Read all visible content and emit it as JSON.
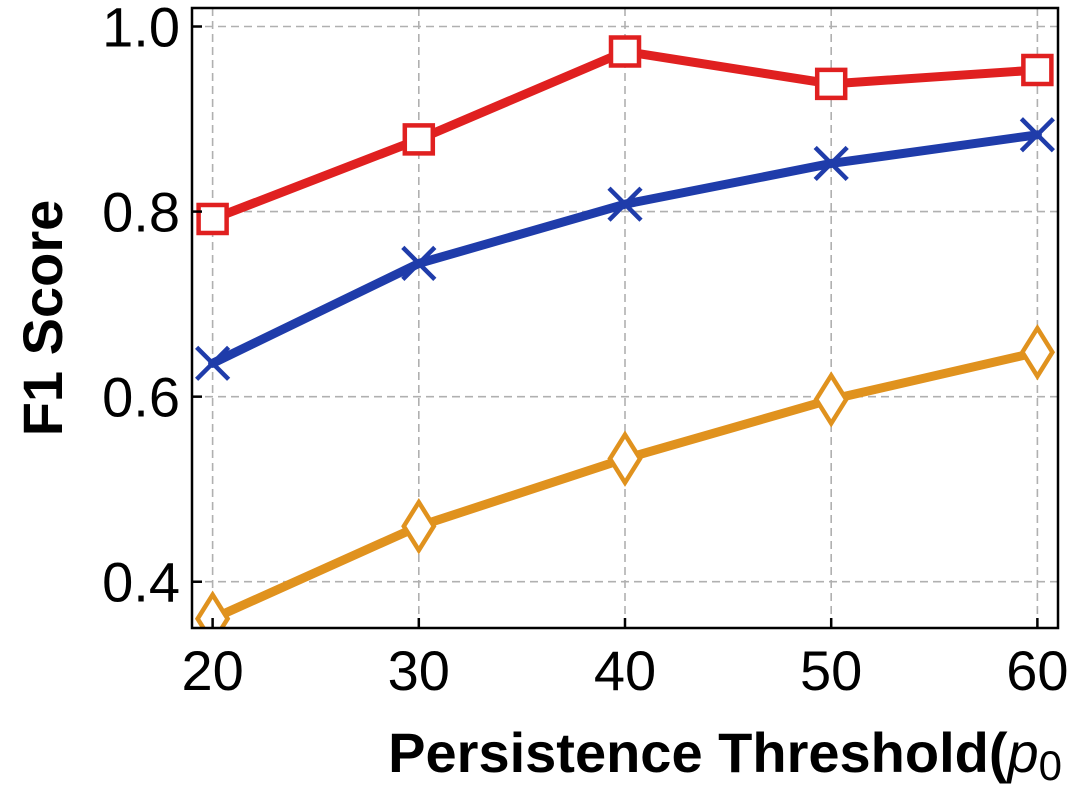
{
  "chart_data": {
    "type": "line",
    "title": "",
    "xlabel": "Persistence Threshold(",
    "xlabel_math_symbol": "p",
    "xlabel_math_subscript": "0",
    "ylabel": "F1 Score",
    "x": [
      20,
      30,
      40,
      50,
      60
    ],
    "x_ticks": [
      "20",
      "30",
      "40",
      "50",
      "60"
    ],
    "xlim": [
      19,
      61
    ],
    "ylim": [
      0.35,
      1.02
    ],
    "y_ticks": [
      "0.4",
      "0.6",
      "0.8",
      "1.0"
    ],
    "y_tick_values": [
      0.4,
      0.6,
      0.8,
      1.0
    ],
    "grid": true,
    "series": [
      {
        "values": [
          0.792,
          0.878,
          0.973,
          0.938,
          0.953
        ],
        "color": "#e02020",
        "marker": "square"
      },
      {
        "values": [
          0.636,
          0.744,
          0.808,
          0.852,
          0.883
        ],
        "color": "#1f3caa",
        "marker": "x"
      },
      {
        "values": [
          0.36,
          0.46,
          0.533,
          0.597,
          0.648
        ],
        "color": "#e0921e",
        "marker": "diamond"
      }
    ]
  }
}
